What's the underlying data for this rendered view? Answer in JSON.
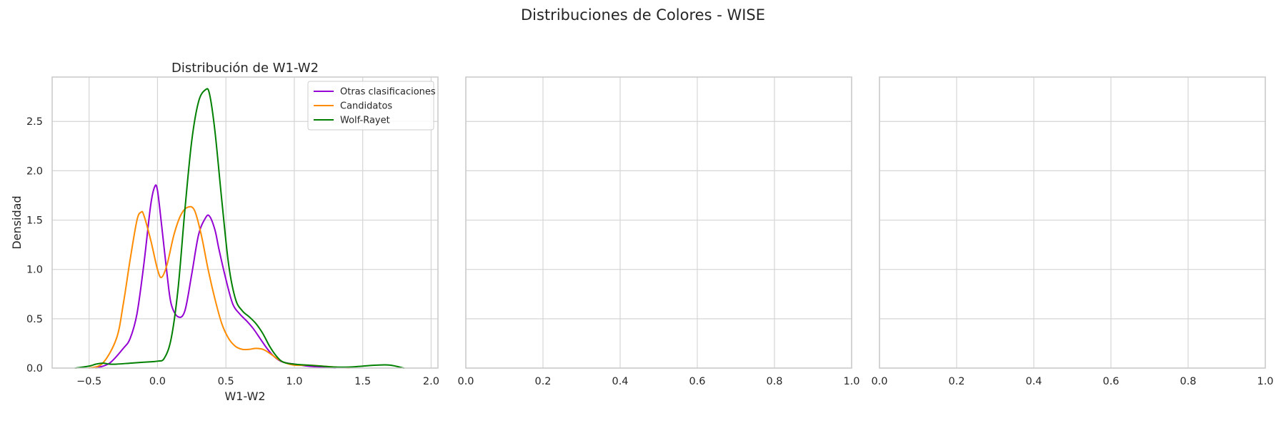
{
  "figure": {
    "suptitle": "Distribuciones de Colores - WISE"
  },
  "chart_data": [
    {
      "type": "line",
      "title": "Distribución de W1-W2",
      "xlabel": "W1-W2",
      "ylabel": "Densidad",
      "xlim": [
        -0.77,
        2.05
      ],
      "ylim": [
        0,
        2.95
      ],
      "xticks": [
        -0.5,
        0.0,
        0.5,
        1.0,
        1.5,
        2.0
      ],
      "xtick_labels": [
        "−0.5",
        "0.0",
        "0.5",
        "1.0",
        "1.5",
        "2.0"
      ],
      "yticks": [
        0.0,
        0.5,
        1.0,
        1.5,
        2.0,
        2.5
      ],
      "ytick_labels": [
        "0.0",
        "0.5",
        "1.0",
        "1.5",
        "2.0",
        "2.5"
      ],
      "grid": true,
      "legend": "upper right",
      "series": [
        {
          "name": "Otras clasificaciones",
          "color": "#9400D3",
          "x": [
            -0.45,
            -0.35,
            -0.25,
            -0.2,
            -0.15,
            -0.1,
            -0.05,
            -0.02,
            0.0,
            0.03,
            0.07,
            0.1,
            0.15,
            0.2,
            0.25,
            0.3,
            0.35,
            0.38,
            0.42,
            0.45,
            0.5,
            0.55,
            0.6,
            0.65,
            0.7,
            0.75,
            0.8,
            0.85,
            0.9,
            0.95,
            1.0,
            1.1,
            1.2,
            1.3
          ],
          "y": [
            0.0,
            0.05,
            0.2,
            0.3,
            0.55,
            1.05,
            1.65,
            1.84,
            1.8,
            1.45,
            0.95,
            0.65,
            0.52,
            0.58,
            0.95,
            1.35,
            1.52,
            1.54,
            1.4,
            1.2,
            0.9,
            0.65,
            0.55,
            0.48,
            0.4,
            0.3,
            0.2,
            0.12,
            0.07,
            0.05,
            0.04,
            0.02,
            0.01,
            0.0
          ]
        },
        {
          "name": "Candidatos",
          "color": "#FF8C00",
          "x": [
            -0.5,
            -0.4,
            -0.3,
            -0.25,
            -0.2,
            -0.15,
            -0.12,
            -0.1,
            -0.05,
            0.0,
            0.03,
            0.07,
            0.12,
            0.17,
            0.22,
            0.27,
            0.32,
            0.37,
            0.42,
            0.47,
            0.52,
            0.57,
            0.62,
            0.67,
            0.72,
            0.77,
            0.82,
            0.87,
            0.92,
            1.0,
            1.1,
            1.2,
            1.3,
            1.4
          ],
          "y": [
            0.0,
            0.05,
            0.3,
            0.65,
            1.1,
            1.5,
            1.58,
            1.55,
            1.3,
            1.0,
            0.92,
            1.05,
            1.35,
            1.55,
            1.63,
            1.6,
            1.35,
            1.0,
            0.7,
            0.45,
            0.3,
            0.22,
            0.19,
            0.19,
            0.2,
            0.19,
            0.15,
            0.1,
            0.06,
            0.03,
            0.03,
            0.02,
            0.01,
            0.0
          ]
        },
        {
          "name": "Wolf-Rayet",
          "color": "#008000",
          "x": [
            -0.6,
            -0.5,
            -0.45,
            -0.4,
            -0.35,
            -0.3,
            -0.2,
            -0.1,
            0.0,
            0.05,
            0.1,
            0.15,
            0.2,
            0.25,
            0.3,
            0.35,
            0.38,
            0.42,
            0.47,
            0.52,
            0.57,
            0.62,
            0.67,
            0.72,
            0.77,
            0.82,
            0.87,
            0.92,
            1.0,
            1.1,
            1.2,
            1.3,
            1.4,
            1.5,
            1.6,
            1.7,
            1.8
          ],
          "y": [
            0.0,
            0.02,
            0.04,
            0.05,
            0.04,
            0.04,
            0.05,
            0.06,
            0.07,
            0.1,
            0.3,
            0.8,
            1.6,
            2.3,
            2.7,
            2.82,
            2.78,
            2.4,
            1.7,
            1.05,
            0.7,
            0.58,
            0.52,
            0.45,
            0.35,
            0.22,
            0.12,
            0.06,
            0.04,
            0.03,
            0.02,
            0.01,
            0.01,
            0.02,
            0.03,
            0.03,
            0.0
          ]
        }
      ]
    },
    {
      "type": "line",
      "title": "",
      "xlim": [
        0,
        1
      ],
      "ylim": [
        0,
        2.95
      ],
      "xticks": [
        0.0,
        0.2,
        0.4,
        0.6,
        0.8,
        1.0
      ],
      "xtick_labels": [
        "0.0",
        "0.2",
        "0.4",
        "0.6",
        "0.8",
        "1.0"
      ],
      "yticks": [
        0.0,
        0.5,
        1.0,
        1.5,
        2.0,
        2.5
      ],
      "grid": true,
      "series": []
    },
    {
      "type": "line",
      "title": "",
      "xlim": [
        0,
        1
      ],
      "ylim": [
        0,
        2.95
      ],
      "xticks": [
        0.0,
        0.2,
        0.4,
        0.6,
        0.8,
        1.0
      ],
      "xtick_labels": [
        "0.0",
        "0.2",
        "0.4",
        "0.6",
        "0.8",
        "1.0"
      ],
      "yticks": [
        0.0,
        0.5,
        1.0,
        1.5,
        2.0,
        2.5
      ],
      "grid": true,
      "series": []
    }
  ]
}
